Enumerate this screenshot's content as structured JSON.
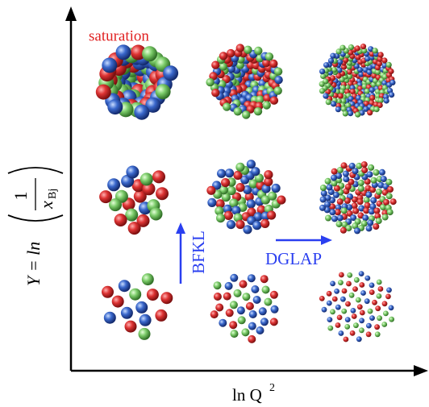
{
  "labels": {
    "saturation": "saturation",
    "bfkl": "BFKL",
    "dglap": "DGLAP"
  },
  "y_axis": {
    "prefix": "Y = ln",
    "numerator": "1",
    "denominator": "x",
    "subscript": "Bj"
  },
  "x_axis": {
    "base": "ln Q",
    "superscript": "2"
  }
}
